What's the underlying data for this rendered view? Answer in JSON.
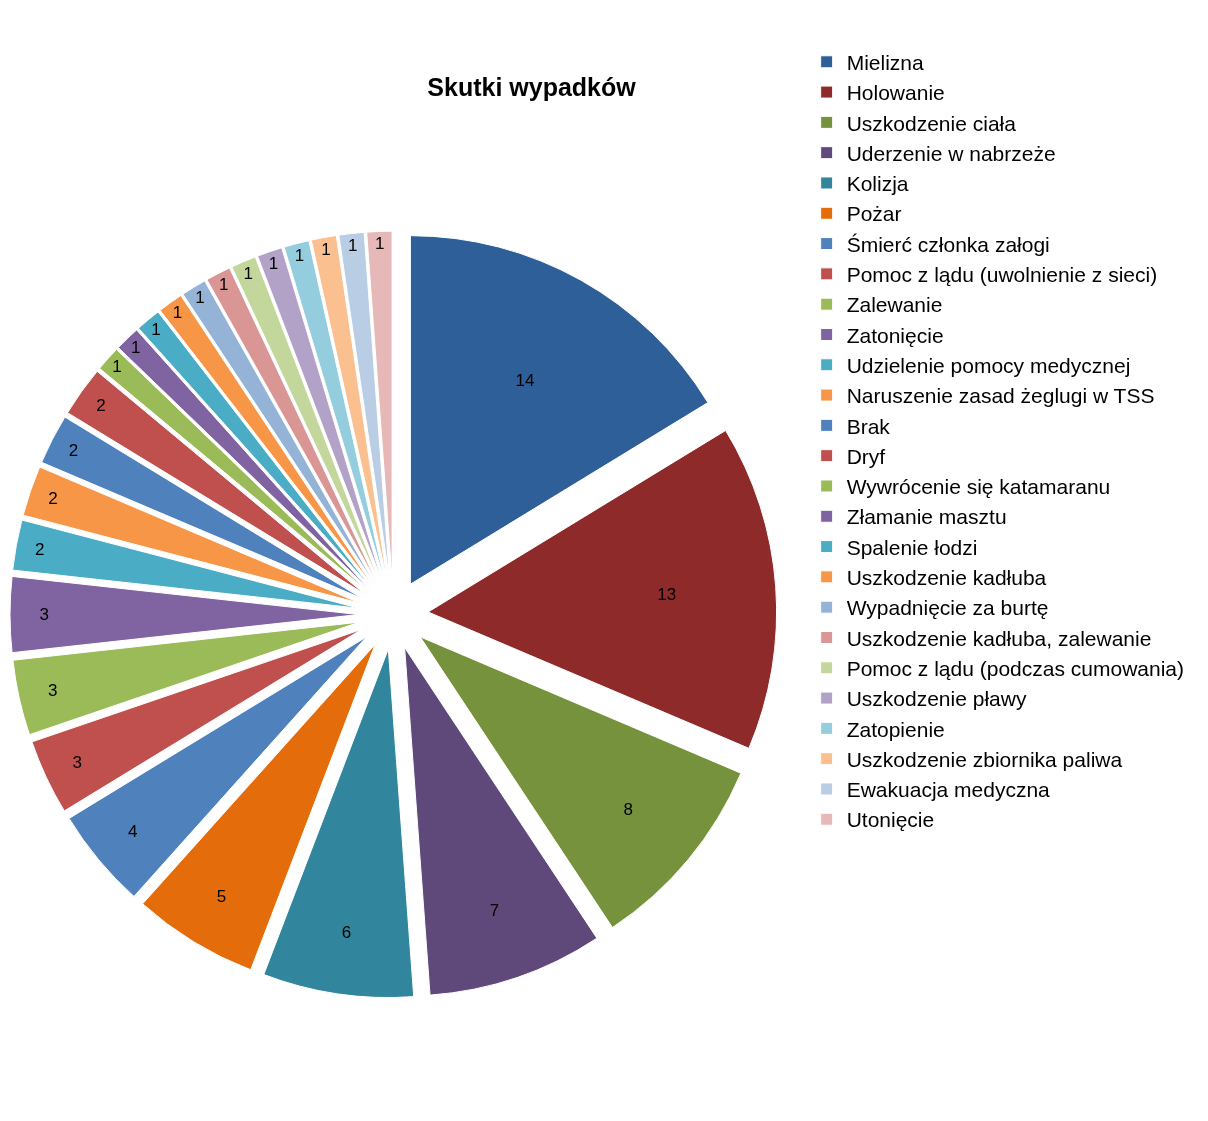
{
  "chart_data": {
    "type": "pie",
    "title": "Skutki wypadków",
    "categories": [
      "Mielizna",
      "Holowanie",
      "Uszkodzenie ciała",
      "Uderzenie w nabrzeże",
      "Kolizja",
      "Pożar",
      "Śmierć członka załogi",
      "Pomoc z lądu (uwolnienie z sieci)",
      "Zalewanie",
      "Zatonięcie",
      "Udzielenie pomocy medycznej",
      "Naruszenie zasad żeglugi w TSS",
      "Brak",
      "Dryf",
      "Wywrócenie się katamaranu",
      "Złamanie masztu",
      "Spalenie łodzi",
      "Uszkodzenie kadłuba",
      "Wypadnięcie za burtę",
      "Uszkodzenie kadłuba, zalewanie",
      "Pomoc z lądu (podczas cumowania)",
      "Uszkodzenie pławy",
      "Zatopienie",
      "Uszkodzenie zbiornika paliwa",
      "Ewakuacja medyczna",
      "Utonięcie"
    ],
    "values": [
      14,
      13,
      8,
      7,
      6,
      5,
      4,
      3,
      3,
      3,
      2,
      2,
      2,
      2,
      1,
      1,
      1,
      1,
      1,
      1,
      1,
      1,
      1,
      1,
      1,
      1
    ],
    "colors": [
      "#2f5f98",
      "#8e2a2a",
      "#76923c",
      "#5f497a",
      "#31859c",
      "#e46c0a",
      "#4f81bd",
      "#c0504d",
      "#9bbb59",
      "#8064a2",
      "#4bacc6",
      "#f79646",
      "#4f81bd",
      "#c0504d",
      "#9bbb59",
      "#8064a2",
      "#4bacc6",
      "#f79646",
      "#95b3d7",
      "#d99694",
      "#c3d69b",
      "#b2a2c7",
      "#93cdde",
      "#fac090",
      "#b9cde5",
      "#e6b9b8"
    ],
    "data_labels": true,
    "legend": "right"
  }
}
